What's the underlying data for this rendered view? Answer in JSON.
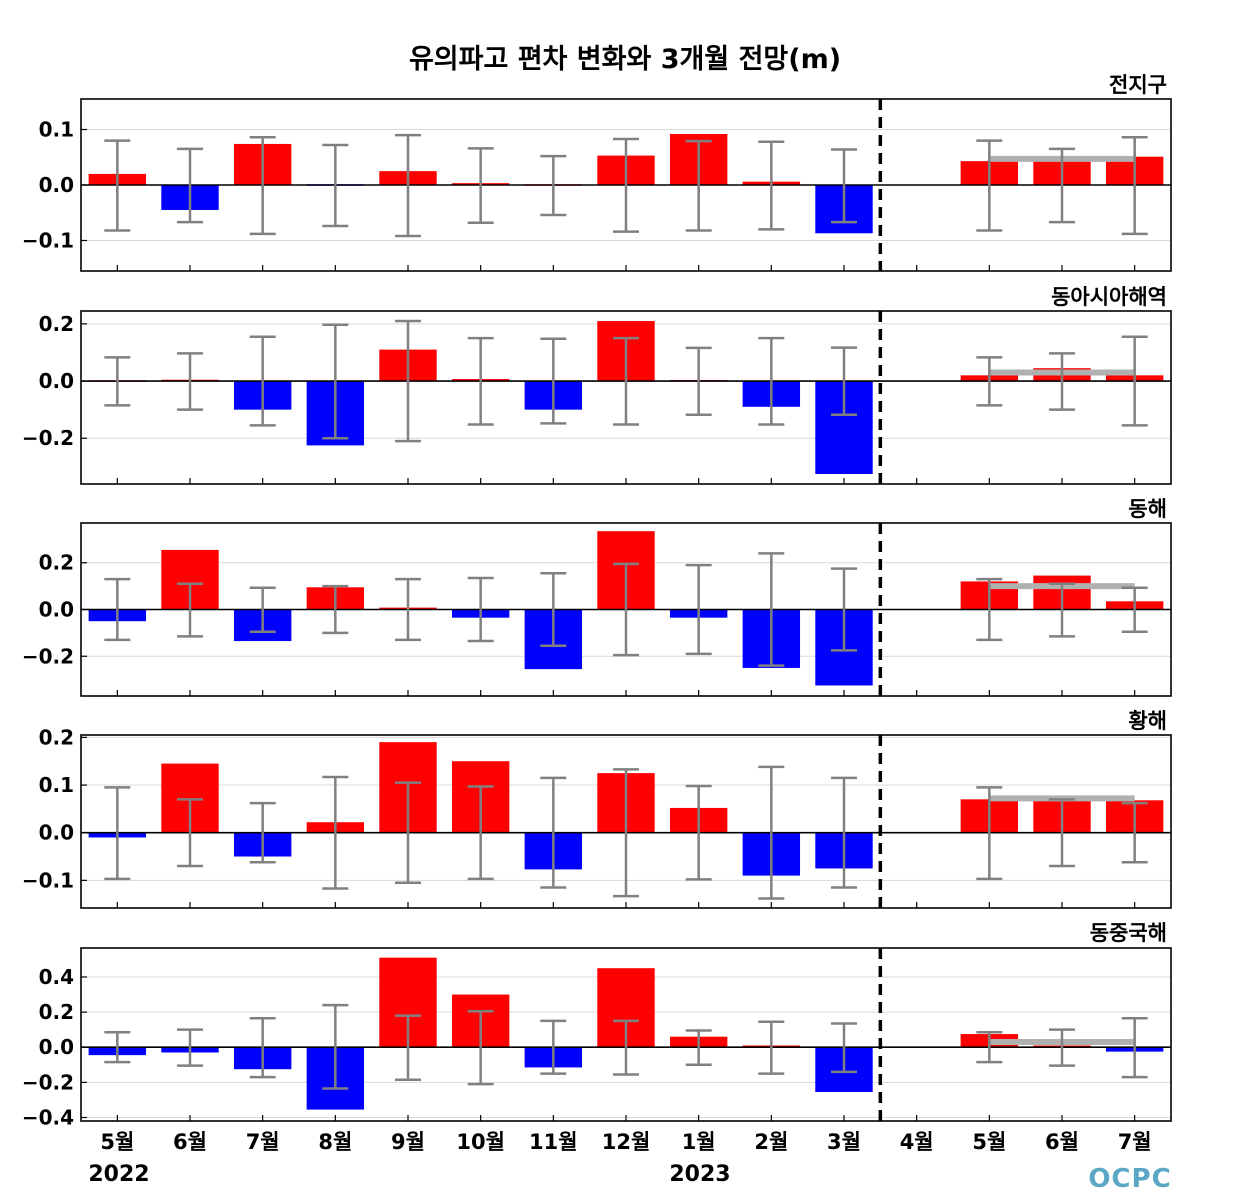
{
  "title": "유의파고 편차 변화와 3개월 전망(m)",
  "logo_text": "OCPC",
  "year_labels": [
    "2022",
    "2023"
  ],
  "colors": {
    "positive": "#ff0000",
    "negative": "#0000ff",
    "errorbar": "#808080",
    "outlook": "#b0b0b0",
    "grid": "#d9d9d9"
  },
  "chart_data": {
    "type": "bar",
    "categories": [
      "5월",
      "6월",
      "7월",
      "8월",
      "9월",
      "10월",
      "11월",
      "12월",
      "1월",
      "2월",
      "3월",
      "4월",
      "5월",
      "6월",
      "7월"
    ],
    "forecast_start_index": 12,
    "forecast_divider_after_index": 10.5,
    "panels": [
      {
        "label": "전지구",
        "ylim": [
          -0.155,
          0.155
        ],
        "yticks": [
          0.1,
          0.0,
          -0.1
        ],
        "ytick_labels": [
          "0.1",
          "0.0",
          "−0.1"
        ],
        "values": [
          0.02,
          -0.045,
          0.074,
          -0.002,
          0.025,
          0.002,
          0.0,
          0.053,
          0.092,
          0.006,
          -0.087,
          null,
          0.043,
          0.048,
          0.051
        ],
        "error_low": [
          -0.082,
          -0.067,
          -0.088,
          -0.074,
          -0.092,
          -0.068,
          -0.054,
          -0.084,
          -0.082,
          -0.08,
          -0.067,
          null,
          -0.082,
          -0.067,
          -0.088
        ],
        "error_high": [
          0.08,
          0.065,
          0.086,
          0.072,
          0.09,
          0.066,
          0.052,
          0.083,
          0.079,
          0.078,
          0.064,
          null,
          0.08,
          0.065,
          0.086
        ],
        "outlook_level": 0.047
      },
      {
        "label": "동아시아해역",
        "ylim": [
          -0.36,
          0.245
        ],
        "yticks": [
          0.2,
          0.0,
          -0.2
        ],
        "ytick_labels": [
          "0.2",
          "0.0",
          "−0.2"
        ],
        "values": [
          0.0,
          0.002,
          -0.1,
          -0.225,
          0.11,
          0.007,
          -0.1,
          0.21,
          0.001,
          -0.09,
          -0.325,
          null,
          0.02,
          0.045,
          0.02
        ],
        "error_low": [
          -0.085,
          -0.1,
          -0.155,
          -0.2,
          -0.21,
          -0.152,
          -0.148,
          -0.152,
          -0.118,
          -0.152,
          -0.118,
          null,
          -0.085,
          -0.1,
          -0.155
        ],
        "error_high": [
          0.083,
          0.097,
          0.155,
          0.197,
          0.21,
          0.15,
          0.148,
          0.15,
          0.116,
          0.15,
          0.117,
          null,
          0.083,
          0.097,
          0.155
        ],
        "outlook_level": 0.03
      },
      {
        "label": "동해",
        "ylim": [
          -0.37,
          0.37
        ],
        "yticks": [
          0.2,
          0.0,
          -0.2
        ],
        "ytick_labels": [
          "0.2",
          "0.0",
          "−0.2"
        ],
        "values": [
          -0.05,
          0.255,
          -0.135,
          0.095,
          0.008,
          -0.035,
          -0.255,
          0.335,
          -0.035,
          -0.25,
          -0.325,
          null,
          0.12,
          0.145,
          0.035
        ],
        "error_low": [
          -0.13,
          -0.115,
          -0.095,
          -0.1,
          -0.13,
          -0.135,
          -0.155,
          -0.195,
          -0.19,
          -0.24,
          -0.175,
          null,
          -0.13,
          -0.115,
          -0.095
        ],
        "error_high": [
          0.13,
          0.11,
          0.093,
          0.1,
          0.13,
          0.135,
          0.155,
          0.195,
          0.19,
          0.24,
          0.175,
          null,
          0.13,
          0.11,
          0.093
        ],
        "outlook_level": 0.1
      },
      {
        "label": "황해",
        "ylim": [
          -0.158,
          0.205
        ],
        "yticks": [
          0.2,
          0.1,
          0.0,
          -0.1
        ],
        "ytick_labels": [
          "0.2",
          "0.1",
          "0.0",
          "−0.1"
        ],
        "values": [
          -0.01,
          0.145,
          -0.05,
          0.022,
          0.19,
          0.15,
          -0.077,
          0.125,
          0.052,
          -0.09,
          -0.075,
          null,
          0.07,
          0.072,
          0.068
        ],
        "error_low": [
          -0.097,
          -0.07,
          -0.062,
          -0.117,
          -0.105,
          -0.097,
          -0.115,
          -0.133,
          -0.098,
          -0.138,
          -0.115,
          null,
          -0.097,
          -0.07,
          -0.062
        ],
        "error_high": [
          0.095,
          0.07,
          0.062,
          0.117,
          0.105,
          0.097,
          0.115,
          0.133,
          0.098,
          0.138,
          0.115,
          null,
          0.095,
          0.07,
          0.062
        ],
        "outlook_level": 0.072
      },
      {
        "label": "동중국해",
        "ylim": [
          -0.42,
          0.565
        ],
        "yticks": [
          0.4,
          0.2,
          0.0,
          -0.2,
          -0.4
        ],
        "ytick_labels": [
          "0.4",
          "0.2",
          "0.0",
          "−0.2",
          "−0.4"
        ],
        "values": [
          -0.045,
          -0.03,
          -0.125,
          -0.355,
          0.51,
          0.3,
          -0.115,
          0.45,
          0.06,
          0.01,
          -0.255,
          null,
          0.075,
          0.01,
          -0.025
        ],
        "error_low": [
          -0.085,
          -0.105,
          -0.17,
          -0.235,
          -0.185,
          -0.21,
          -0.15,
          -0.155,
          -0.1,
          -0.15,
          -0.14,
          null,
          -0.085,
          -0.105,
          -0.17
        ],
        "error_high": [
          0.085,
          0.1,
          0.165,
          0.24,
          0.18,
          0.205,
          0.15,
          0.15,
          0.095,
          0.145,
          0.135,
          null,
          0.085,
          0.1,
          0.165
        ],
        "outlook_level": 0.03
      }
    ]
  }
}
